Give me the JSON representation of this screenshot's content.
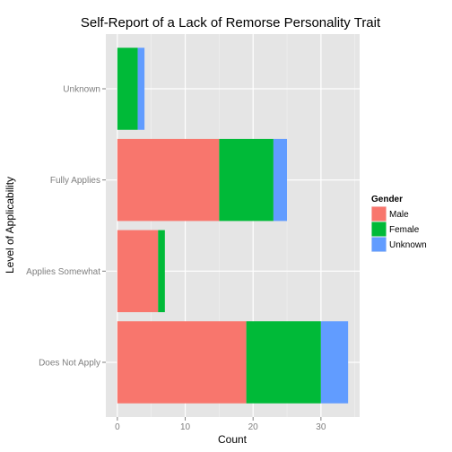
{
  "chart_data": {
    "type": "bar",
    "orientation": "horizontal",
    "stacked": true,
    "title": "Self-Report of a Lack of Remorse Personality Trait",
    "xlabel": "Count",
    "ylabel": "Level of Applicability",
    "categories": [
      "Does Not Apply",
      "Applies Somewhat",
      "Fully Applies",
      "Unknown"
    ],
    "series": [
      {
        "name": "Male",
        "color": "#F8766D",
        "values": [
          19,
          6,
          15,
          0
        ]
      },
      {
        "name": "Female",
        "color": "#00BA38",
        "values": [
          11,
          1,
          8,
          3
        ]
      },
      {
        "name": "Unknown",
        "color": "#619CFF",
        "values": [
          4,
          0,
          2,
          1
        ]
      }
    ],
    "xlim": [
      -1.7,
      35.7
    ],
    "xticks": [
      0,
      10,
      20,
      30
    ],
    "grid": true,
    "legend": {
      "title": "Gender",
      "position": "right"
    }
  }
}
